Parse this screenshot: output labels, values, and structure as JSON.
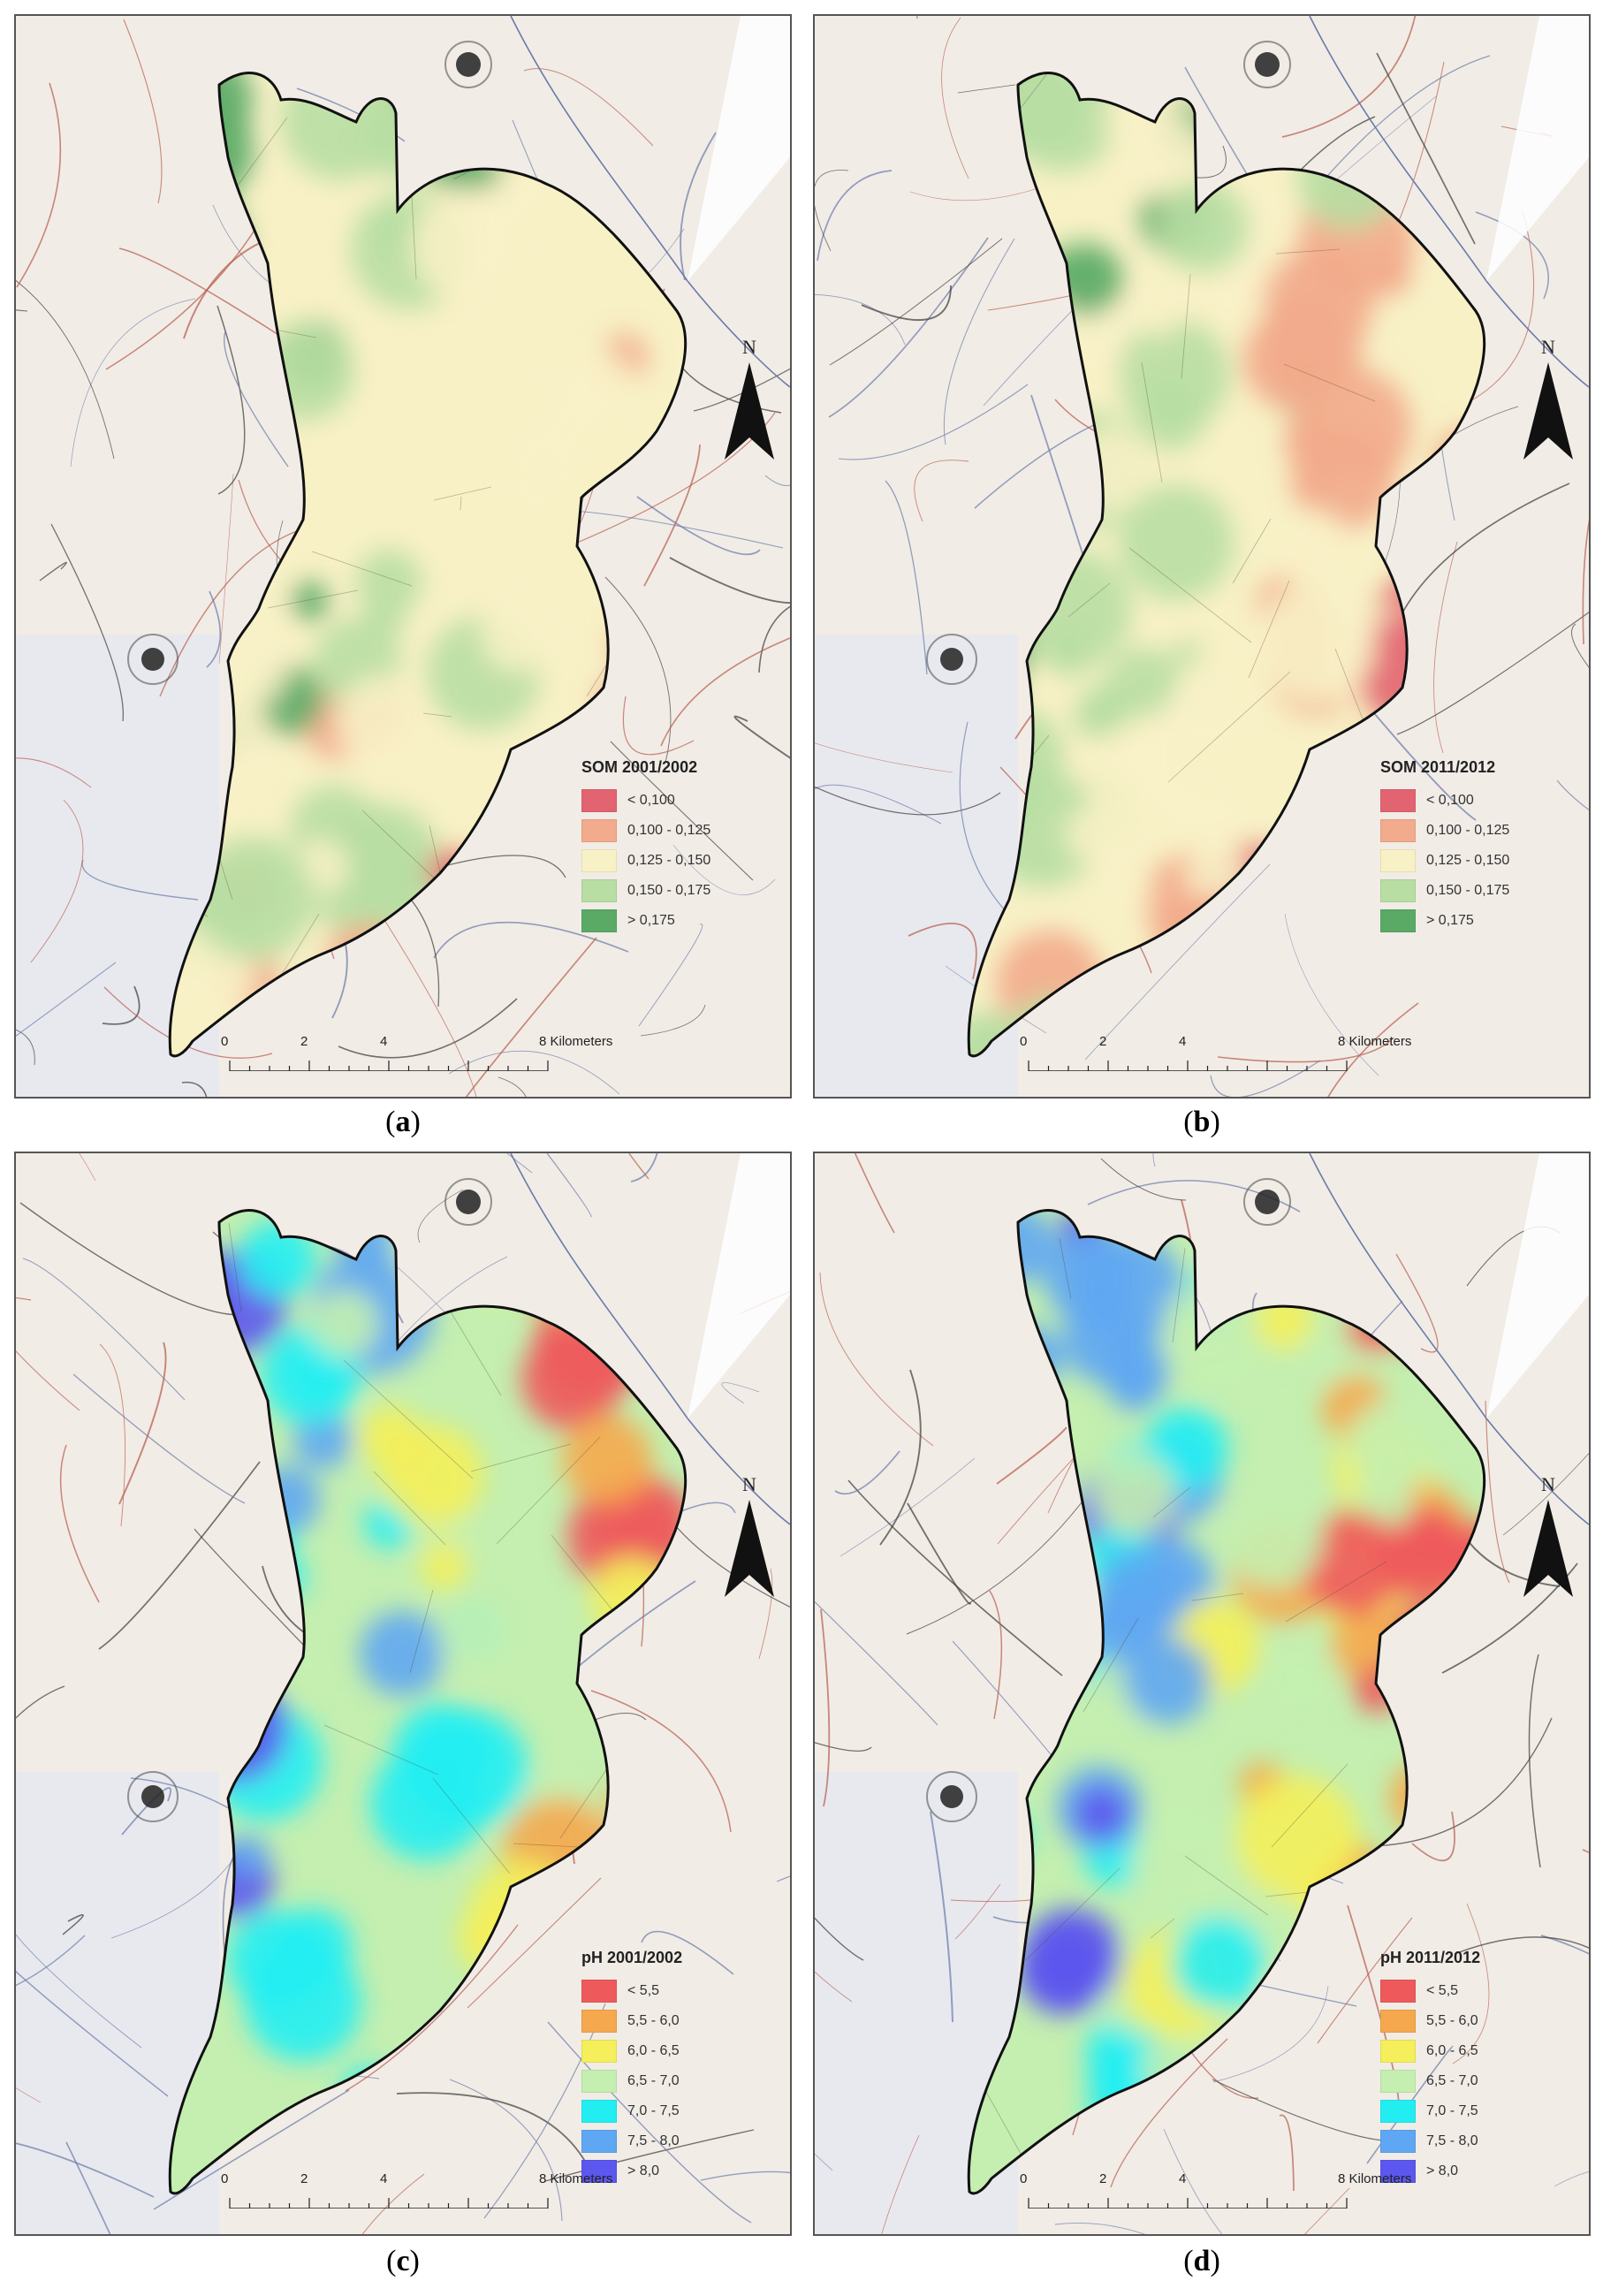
{
  "panels": [
    {
      "id": "a",
      "label_letter": "a",
      "legend_title": "SOM 2001/2002",
      "legend_items": [
        {
          "label": "< 0,100",
          "color": "#e26470"
        },
        {
          "label": "0,100 - 0,125",
          "color": "#f2ab8c"
        },
        {
          "label": "0,125 - 0,150",
          "color": "#f8f1c6"
        },
        {
          "label": "0,150 - 0,175",
          "color": "#b8dea3"
        },
        {
          "label": "> 0,175",
          "color": "#5aaa66"
        }
      ]
    },
    {
      "id": "b",
      "label_letter": "b",
      "legend_title": "SOM 2011/2012",
      "legend_items": [
        {
          "label": "< 0,100",
          "color": "#e26470"
        },
        {
          "label": "0,100 - 0,125",
          "color": "#f2ab8c"
        },
        {
          "label": "0,125 - 0,150",
          "color": "#f8f1c6"
        },
        {
          "label": "0,150 - 0,175",
          "color": "#b8dea3"
        },
        {
          "label": "> 0,175",
          "color": "#5aaa66"
        }
      ]
    },
    {
      "id": "c",
      "label_letter": "c",
      "legend_title": "pH 2001/2002",
      "legend_items": [
        {
          "label": "< 5,5",
          "color": "#ee5a5c"
        },
        {
          "label": "5,5 - 6,0",
          "color": "#f5a84e"
        },
        {
          "label": "6,0 - 6,5",
          "color": "#f4ef5a"
        },
        {
          "label": "6,5 - 7,0",
          "color": "#c4efb0"
        },
        {
          "label": "7,0 - 7,5",
          "color": "#22eef2"
        },
        {
          "label": "7,5 - 8,0",
          "color": "#5fa7f2"
        },
        {
          "label": "> 8,0",
          "color": "#5c57ee"
        }
      ]
    },
    {
      "id": "d",
      "label_letter": "d",
      "legend_title": "pH 2011/2012",
      "legend_items": [
        {
          "label": "< 5,5",
          "color": "#ee5a5c"
        },
        {
          "label": "5,5 - 6,0",
          "color": "#f5a84e"
        },
        {
          "label": "6,0 - 6,5",
          "color": "#f4ef5a"
        },
        {
          "label": "6,5 - 7,0",
          "color": "#c4efb0"
        },
        {
          "label": "7,0 - 7,5",
          "color": "#22eef2"
        },
        {
          "label": "7,5 - 8,0",
          "color": "#5fa7f2"
        },
        {
          "label": "> 8,0",
          "color": "#5c57ee"
        }
      ]
    }
  ],
  "scale": {
    "ticks": [
      "0",
      "2",
      "4",
      "8 Kilometers"
    ]
  },
  "north_label": "N"
}
